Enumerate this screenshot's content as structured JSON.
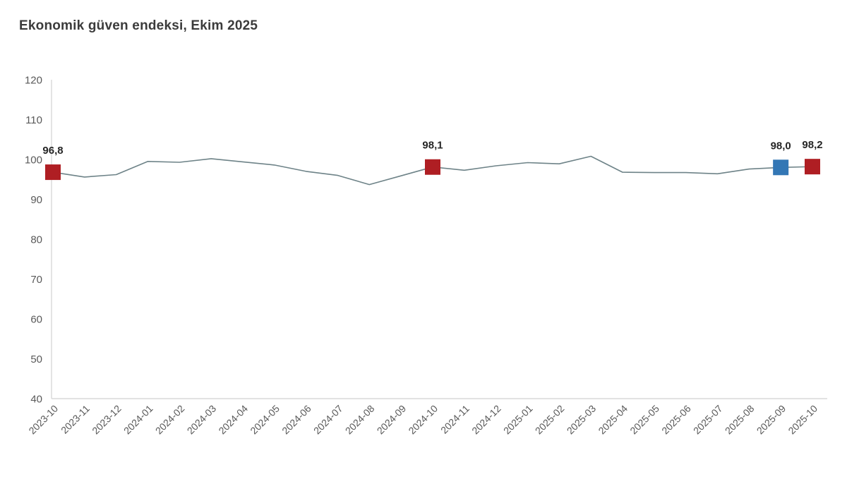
{
  "header": {
    "title": "Ekonomik güven endeksi, Ekim 2025"
  },
  "chart_data": {
    "type": "line",
    "title": "Ekonomik güven endeksi, Ekim 2025",
    "categories": [
      "2023-10",
      "2023-11",
      "2023-12",
      "2024-01",
      "2024-02",
      "2024-03",
      "2024-04",
      "2024-05",
      "2024-06",
      "2024-07",
      "2024-08",
      "2024-09",
      "2024-10",
      "2024-11",
      "2024-12",
      "2025-01",
      "2025-02",
      "2025-03",
      "2025-04",
      "2025-05",
      "2025-06",
      "2025-07",
      "2025-08",
      "2025-09",
      "2025-10"
    ],
    "series": [
      {
        "name": "Ekonomik güven endeksi",
        "values": [
          96.8,
          95.6,
          96.2,
          99.5,
          99.3,
          100.2,
          99.4,
          98.6,
          97.0,
          96.0,
          93.7,
          95.9,
          98.1,
          97.3,
          98.4,
          99.2,
          98.9,
          100.8,
          96.8,
          96.7,
          96.7,
          96.4,
          97.6,
          98.0,
          98.2
        ]
      }
    ],
    "ylim": [
      40,
      120
    ],
    "ytick_step": 10,
    "yticks": [
      40,
      50,
      60,
      70,
      80,
      90,
      100,
      110,
      120
    ],
    "grid": false,
    "legend": "none",
    "xlabel": "",
    "ylabel": "",
    "annotations": [
      {
        "index": 0,
        "label": "96,8",
        "marker": "square",
        "marker_color": "#AF1E23"
      },
      {
        "index": 12,
        "label": "98,1",
        "marker": "square",
        "marker_color": "#AF1E23"
      },
      {
        "index": 23,
        "label": "98,0",
        "marker": "square",
        "marker_color": "#3377B5"
      },
      {
        "index": 24,
        "label": "98,2",
        "marker": "square",
        "marker_color": "#AF1E23"
      }
    ],
    "colors": {
      "line": "#6E8388",
      "axis": "#D9D9D9",
      "tick_label": "#595959",
      "annotation_text": "#262626",
      "red_marker": "#AF1E23",
      "blue_marker": "#3377B5"
    }
  }
}
